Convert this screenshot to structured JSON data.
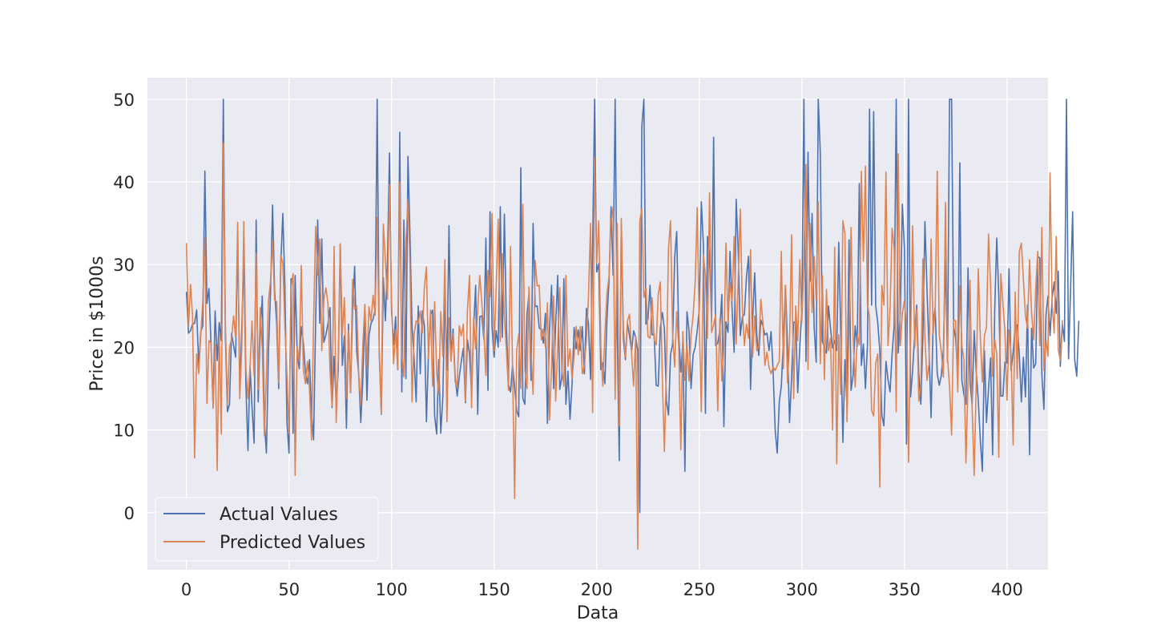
{
  "chart_data": {
    "type": "line",
    "xlabel": "Data",
    "ylabel": "Price in $1000s",
    "xlim": [
      -19,
      420
    ],
    "ylim": [
      -6.9,
      52.6
    ],
    "xticks": [
      "0",
      "50",
      "100",
      "150",
      "200",
      "250",
      "300",
      "350",
      "400"
    ],
    "yticks": [
      "0",
      "10",
      "20",
      "30",
      "40",
      "50"
    ],
    "grid": true,
    "legend_position": "lower-left",
    "series": [
      {
        "name": "Actual Values",
        "color": "#4c72b0",
        "values": [
          26.7,
          21.7,
          22.0,
          22.8,
          22.9,
          24.5,
          17.8,
          21.9,
          22.6,
          41.3,
          25.3,
          27.1,
          20.3,
          13.1,
          24.4,
          18.4,
          23.0,
          20.8,
          50.0,
          21.3,
          12.2,
          13.1,
          21.7,
          20.2,
          18.8,
          33.8,
          14.9,
          22.4,
          31.0,
          15.4,
          7.5,
          17.7,
          12.7,
          8.4,
          35.4,
          13.4,
          22.0,
          26.2,
          11.0,
          7.2,
          19.4,
          26.6,
          37.2,
          26.9,
          22.9,
          15.0,
          30.1,
          36.2,
          27.5,
          11.0,
          7.2,
          28.3,
          9.6,
          28.7,
          19.3,
          17.4,
          22.5,
          20.6,
          17.0,
          15.6,
          18.5,
          12.1,
          8.8,
          23.1,
          35.4,
          22.9,
          33.1,
          20.6,
          21.5,
          22.9,
          24.8,
          12.7,
          18.9,
          13.3,
          17.1,
          32.5,
          17.8,
          21.4,
          10.2,
          22.8,
          14.5,
          24.6,
          29.8,
          19.6,
          16.7,
          10.9,
          16.1,
          24.4,
          13.6,
          21.4,
          22.9,
          23.4,
          24.5,
          50.0,
          19.3,
          11.9,
          28.4,
          23.2,
          30.5,
          43.5,
          24.4,
          20.3,
          23.7,
          17.3,
          46.0,
          14.6,
          35.4,
          16.2,
          43.1,
          33.4,
          22.4,
          18.6,
          13.4,
          25.0,
          16.8,
          24.4,
          22.6,
          11.0,
          19.4,
          23.9,
          24.5,
          11.7,
          9.5,
          18.5,
          9.6,
          14.0,
          26.1,
          17.2,
          34.7,
          18.9,
          22.2,
          16.5,
          14.1,
          16.4,
          18.3,
          19.9,
          13.3,
          20.9,
          19.2,
          14.5,
          22.4,
          27.5,
          11.9,
          23.7,
          23.8,
          21.0,
          33.2,
          14.8,
          36.4,
          22.4,
          18.8,
          22.0,
          20.0,
          37.0,
          21.2,
          36.1,
          22.3,
          15.5,
          14.6,
          17.8,
          15.1,
          12.3,
          11.6,
          41.7,
          13.8,
          13.1,
          23.9,
          26.5,
          16.0,
          35.0,
          24.9,
          25.0,
          22.3,
          22.2,
          20.5,
          24.1,
          10.8,
          22.2,
          27.5,
          15.0,
          22.8,
          28.7,
          14.9,
          16.4,
          28.3,
          13.1,
          17.1,
          11.3,
          15.6,
          22.4,
          19.8,
          22.1,
          19.6,
          22.5,
          16.8,
          24.7,
          22.8,
          16.1,
          32.2,
          50.0,
          29.1,
          30.1,
          17.3,
          18.1,
          15.6,
          23.4,
          27.9,
          37.0,
          28.7,
          50.0,
          22.0,
          6.3,
          34.9,
          21.1,
          18.5,
          22.9,
          21.4,
          19.5,
          22.0,
          21.2,
          19.6,
          0.0,
          46.7,
          50.0,
          22.8,
          23.4,
          27.5,
          21.5,
          21.6,
          15.4,
          15.3,
          22.3,
          24.2,
          22.2,
          13.5,
          11.8,
          19.1,
          20.4,
          30.8,
          34.0,
          21.4,
          17.0,
          20.6,
          5.0,
          24.3,
          22.0,
          15.0,
          19.1,
          20.0,
          22.0,
          24.6,
          37.6,
          32.5,
          12.0,
          33.4,
          31.2,
          23.1,
          45.4,
          20.2,
          20.5,
          22.0,
          26.4,
          10.4,
          23.1,
          21.8,
          31.6,
          24.6,
          19.4,
          37.9,
          31.5,
          21.4,
          23.6,
          24.0,
          28.5,
          31.0,
          14.9,
          23.3,
          29.0,
          21.6,
          19.0,
          23.3,
          22.6,
          21.5,
          21.7,
          19.6,
          21.9,
          17.1,
          10.0,
          7.2,
          13.4,
          15.3,
          20.8,
          27.5,
          20.6,
          10.9,
          16.3,
          23.0,
          23.1,
          14.5,
          20.1,
          24.3,
          50.0,
          18.3,
          43.6,
          28.0,
          36.2,
          22.4,
          18.2,
          50.0,
          43.5,
          20.7,
          20.0,
          19.3,
          25.0,
          22.2,
          19.9,
          20.8,
          19.6,
          32.7,
          21.3,
          8.5,
          18.5,
          12.7,
          33.0,
          14.8,
          16.6,
          22.6,
          20.1,
          39.8,
          17.8,
          20.4,
          15.0,
          20.3,
          48.8,
          25.1,
          48.5,
          25.0,
          23.0,
          19.6,
          11.8,
          10.5,
          18.3,
          16.1,
          14.6,
          19.2,
          22.6,
          50.0,
          19.3,
          24.1,
          37.3,
          32.0,
          8.3,
          50.0,
          14.0,
          17.2,
          21.6,
          25.1,
          16.8,
          13.1,
          21.2,
          35.2,
          27.1,
          19.7,
          11.5,
          23.1,
          24.8,
          16.8,
          15.4,
          16.6,
          19.7,
          30.5,
          18.2,
          50.0,
          50.0,
          22.5,
          21.0,
          16.6,
          42.3,
          16.0,
          14.3,
          13.1,
          29.6,
          15.8,
          13.0,
          22.0,
          17.1,
          13.6,
          8.8,
          5.0,
          19.6,
          10.9,
          15.0,
          18.7,
          7.0,
          24.2,
          33.2,
          26.3,
          14.1,
          14.1,
          18.2,
          18.1,
          29.5,
          17.2,
          19.4,
          22.6,
          22.7,
          19.1,
          13.4,
          18.8,
          14.0,
          25.1,
          7.0,
          22.3,
          17.5,
          18.0,
          31.0,
          30.8,
          16.7,
          12.5,
          23.9,
          26.2,
          21.4,
          25.9,
          27.9,
          24.1,
          29.2,
          17.7,
          22.8,
          20.7,
          50.0,
          18.6,
          27.1,
          36.4,
          18.5,
          16.5,
          23.2
        ]
      },
      {
        "name": "Predicted Values",
        "color": "#dd8452",
        "values": [
          32.6,
          22.5,
          27.6,
          23.8,
          6.6,
          19.2,
          16.8,
          21.5,
          25.5,
          33.3,
          13.2,
          20.8,
          20.5,
          12.6,
          20.3,
          5.1,
          21.6,
          9.5,
          44.7,
          22.9,
          13.0,
          20.0,
          21.0,
          23.8,
          21.2,
          35.1,
          13.8,
          20.0,
          35.2,
          17.4,
          13.8,
          17.6,
          23.2,
          16.5,
          31.4,
          14.9,
          24.8,
          19.6,
          9.3,
          17.0,
          25.6,
          28.0,
          32.8,
          25.7,
          25.5,
          15.7,
          31.1,
          30.2,
          22.6,
          16.6,
          9.6,
          27.2,
          28.9,
          4.5,
          20.1,
          18.3,
          29.9,
          17.3,
          15.6,
          18.3,
          14.9,
          8.8,
          23.1,
          34.6,
          28.7,
          33.1,
          19.6,
          25.8,
          27.2,
          25.3,
          17.1,
          12.9,
          32.2,
          10.9,
          18.6,
          32.5,
          21.5,
          26.0,
          13.8,
          22.0,
          14.5,
          28.2,
          24.6,
          25.0,
          16.6,
          13.1,
          20.3,
          25.2,
          17.6,
          24.9,
          23.2,
          26.3,
          23.9,
          35.7,
          19.8,
          12.0,
          34.9,
          30.5,
          25.8,
          39.7,
          25.5,
          18.0,
          22.1,
          17.4,
          40.0,
          19.1,
          16.4,
          32.9,
          37.8,
          29.8,
          13.4,
          21.6,
          23.2,
          22.9,
          24.4,
          21.7,
          27.2,
          29.7,
          18.6,
          24.5,
          15.3,
          25.5,
          16.9,
          14.3,
          24.3,
          18.9,
          30.6,
          11.0,
          23.6,
          18.3,
          21.7,
          15.8,
          15.3,
          22.6,
          21.4,
          22.8,
          13.5,
          24.5,
          28.7,
          12.7,
          23.6,
          19.8,
          24.7,
          28.7,
          25.4,
          21.7,
          16.6,
          29.3,
          26.1,
          36.2,
          19.6,
          27.2,
          35.5,
          20.7,
          31.3,
          23.6,
          19.6,
          14.8,
          32.2,
          17.4,
          1.7,
          19.6,
          21.6,
          15.0,
          37.3,
          17.2,
          15.0,
          27.3,
          19.4,
          14.3,
          30.5,
          27.4,
          27.5,
          20.9,
          22.2,
          20.0,
          25.4,
          11.2,
          17.6,
          26.2,
          13.5,
          20.2,
          27.2,
          17.4,
          15.3,
          28.7,
          17.7,
          19.8,
          16.2,
          19.0,
          22.5,
          19.1,
          22.5,
          16.8,
          17.8,
          21.0,
          26.1,
          35.0,
          12.1,
          42.9,
          30.2,
          35.3,
          20.1,
          15.3,
          21.7,
          26.5,
          28.5,
          35.2,
          36.9,
          13.7,
          35.0,
          10.5,
          35.6,
          22.4,
          18.8,
          23.2,
          24.0,
          19.3,
          15.3,
          21.3,
          -4.4,
          35.3,
          36.7,
          26.0,
          27.2,
          21.3,
          21.1,
          26.0,
          20.9,
          20.3,
          26.4,
          27.9,
          16.2,
          7.4,
          17.6,
          32.0,
          35.3,
          21.7,
          17.6,
          24.3,
          20.0,
          7.6,
          21.9,
          16.0,
          20.6,
          15.9,
          21.6,
          23.8,
          27.8,
          36.9,
          22.6,
          12.2,
          31.2,
          28.7,
          21.1,
          38.7,
          21.8,
          22.7,
          24.0,
          12.3,
          23.4,
          15.9,
          20.0,
          32.6,
          23.0,
          27.8,
          25.6,
          33.4,
          20.4,
          28.4,
          36.7,
          24.6,
          20.2,
          22.8,
          21.1,
          31.8,
          18.8,
          23.8,
          19.6,
          20.1,
          25.8,
          23.1,
          17.8,
          19.4,
          17.6,
          16.8,
          17.6,
          17.2,
          17.8,
          18.3,
          31.6,
          17.4,
          27.5,
          15.7,
          20.5,
          33.6,
          13.8,
          25.0,
          20.8,
          30.6,
          23.0,
          30.4,
          42.1,
          17.3,
          35.0,
          24.2,
          31.0,
          25.8,
          37.6,
          18.0,
          28.7,
          16.1,
          27.0,
          19.6,
          21.1,
          10.0,
          32.1,
          5.9,
          21.5,
          14.3,
          35.3,
          33.8,
          11.0,
          22.5,
          34.5,
          21.2,
          15.2,
          21.5,
          20.3,
          41.3,
          30.4,
          41.9,
          25.2,
          23.6,
          12.4,
          11.7,
          18.0,
          19.2,
          3.1,
          27.5,
          25.1,
          41.2,
          20.2,
          24.6,
          34.4,
          32.0,
          12.2,
          43.4,
          20.2,
          24.1,
          25.6,
          22.6,
          6.1,
          21.0,
          34.7,
          19.9,
          24.6,
          13.5,
          15.3,
          30.7,
          21.2,
          16.0,
          18.0,
          33.1,
          21.6,
          24.5,
          41.3,
          21.5,
          19.4,
          16.4,
          37.5,
          18.8,
          15.3,
          9.4,
          23.3,
          23.2,
          14.6,
          27.4,
          20.2,
          18.5,
          6.0,
          15.7,
          28.1,
          12.8,
          4.5,
          15.5,
          29.5,
          21.3,
          15.8,
          21.4,
          22.4,
          33.7,
          27.6,
          16.5,
          21.0,
          19.2,
          6.7,
          28.9,
          25.4,
          21.8,
          13.6,
          22.1,
          19.1,
          8.2,
          26.7,
          16.2,
          31.6,
          32.6,
          28.2,
          23.8,
          22.3,
          30.6,
          24.1,
          20.9,
          27.1,
          31.6,
          20.2,
          34.5,
          17.2,
          20.9,
          18.9,
          41.1,
          25.3,
          21.7,
          33.4,
          19.7,
          18.4,
          23.3
        ]
      }
    ]
  }
}
